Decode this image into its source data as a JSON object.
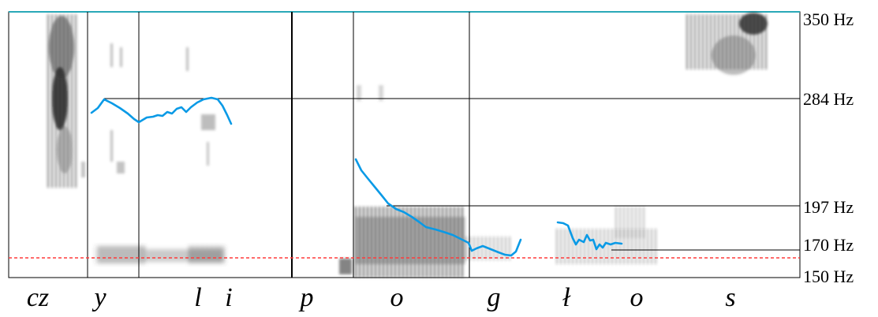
{
  "frequency_labels": [
    {
      "key": "350",
      "text": "350 Hz"
    },
    {
      "key": "284",
      "text": "284 Hz"
    },
    {
      "key": "197",
      "text": "197 Hz"
    },
    {
      "key": "170",
      "text": "170 Hz"
    },
    {
      "key": "150",
      "text": "150 Hz"
    }
  ],
  "segments": [
    "cz",
    "y",
    "l",
    "i",
    "p",
    "o",
    "g",
    "ł",
    "o",
    "s"
  ],
  "colors": {
    "pitch_contour": "#0a9ae6",
    "baseline": "#ff3b3b",
    "top_border": "#2aa8b8",
    "grid_lines": "#000000",
    "spectrogram": "#555555"
  }
}
